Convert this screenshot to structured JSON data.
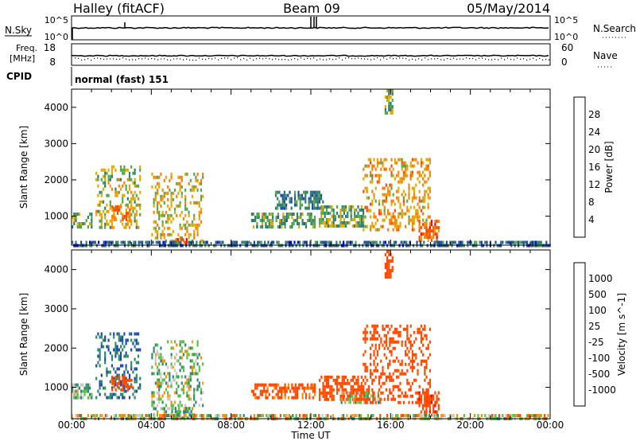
{
  "header": {
    "title": "Halley (fitACF)",
    "beam": "Beam 09",
    "date": "05/May/2014"
  },
  "nsky_panel": {
    "left_label": "N.Sky",
    "right_label": "N.Search",
    "left_ticks": [
      "10^5",
      "10^0"
    ],
    "right_ticks": [
      "10^5",
      "10^0"
    ]
  },
  "freq_panel": {
    "left_label_line1": "Freq.",
    "left_label_line2": "[MHz]",
    "left_ticks": [
      "18",
      "8"
    ],
    "right_label": "Nave",
    "right_ticks": [
      "60",
      "0"
    ]
  },
  "cpid": {
    "label": "CPID",
    "value": "normal (fast) 151"
  },
  "time_axis": {
    "label": "Time UT",
    "ticks": [
      "00:00",
      "04:00",
      "08:00",
      "12:00",
      "16:00",
      "20:00",
      "00:00"
    ],
    "range_hours": [
      0,
      24
    ]
  },
  "colors": {
    "power_scale": [
      "#0000ff",
      "#1e4aa8",
      "#2e7d6e",
      "#57a64b",
      "#e6a800",
      "#ff7f00",
      "#ff4a00",
      "#ff0000"
    ],
    "velocity_scale": [
      "#ff0000",
      "#ff4a00",
      "#ff8c00",
      "#f0a030",
      "#c8c8c8",
      "#57c040",
      "#2e8a6e",
      "#1e4aa8",
      "#1030c0"
    ],
    "ground_scatter": "#b8b8b8"
  },
  "chart_data": [
    {
      "type": "heatmap",
      "name": "power-panel",
      "ylabel": "Slant Range [km]",
      "yticks": [
        "1000",
        "2000",
        "3000",
        "4000"
      ],
      "ylim": [
        200,
        4500
      ],
      "xlim": [
        0,
        24
      ],
      "colorbar_label": "Power [dB]",
      "colorbar_ticks": [
        "4",
        "8",
        "12",
        "16",
        "20",
        "24",
        "28"
      ],
      "colorbar_range": [
        0,
        32
      ],
      "echo_regions": [
        {
          "t0": 0.0,
          "t1": 1.0,
          "r0": 700,
          "r1": 1100,
          "value": 14
        },
        {
          "t0": 1.2,
          "t1": 3.4,
          "r0": 700,
          "r1": 2400,
          "value": 16
        },
        {
          "t0": 2.0,
          "t1": 3.0,
          "r0": 900,
          "r1": 1300,
          "value": 22
        },
        {
          "t0": 4.0,
          "t1": 6.6,
          "r0": 300,
          "r1": 2200,
          "value": 18
        },
        {
          "t0": 5.2,
          "t1": 5.8,
          "r0": 250,
          "r1": 400,
          "value": 28
        },
        {
          "t0": 9.0,
          "t1": 12.2,
          "r0": 700,
          "r1": 1100,
          "value": 12
        },
        {
          "t0": 10.2,
          "t1": 12.6,
          "r0": 1200,
          "r1": 1700,
          "value": 9
        },
        {
          "t0": 12.4,
          "t1": 14.6,
          "r0": 700,
          "r1": 1300,
          "value": 14
        },
        {
          "t0": 14.6,
          "t1": 18.0,
          "r0": 600,
          "r1": 2600,
          "value": 20
        },
        {
          "t0": 15.7,
          "t1": 16.1,
          "r0": 3800,
          "r1": 4500,
          "value": 14
        },
        {
          "t0": 17.4,
          "t1": 18.4,
          "r0": 300,
          "r1": 900,
          "value": 24
        },
        {
          "t0": 0.0,
          "t1": 24.0,
          "r0": 200,
          "r1": 320,
          "value": 8
        }
      ]
    },
    {
      "type": "heatmap",
      "name": "velocity-panel",
      "ylabel": "Slant Range [km]",
      "yticks": [
        "1000",
        "2000",
        "3000",
        "4000"
      ],
      "ylim": [
        200,
        4500
      ],
      "xlim": [
        0,
        24
      ],
      "colorbar_label": "Velocity [m s^-1]",
      "colorbar_ticks": [
        "1000",
        "500",
        "100",
        "25",
        "-25",
        "-100",
        "-500",
        "-1000"
      ],
      "colorbar_range": [
        -1000,
        1000
      ],
      "echo_regions": [
        {
          "t0": 0.0,
          "t1": 1.0,
          "r0": 700,
          "r1": 1100,
          "value": 100
        },
        {
          "t0": 1.2,
          "t1": 3.4,
          "r0": 700,
          "r1": 2400,
          "value": 500
        },
        {
          "t0": 2.0,
          "t1": 3.0,
          "r0": 900,
          "r1": 1300,
          "value": -300
        },
        {
          "t0": 4.0,
          "t1": 6.6,
          "r0": 300,
          "r1": 2200,
          "value": 60
        },
        {
          "t0": 5.0,
          "t1": 6.0,
          "r0": 250,
          "r1": 500,
          "value": 80
        },
        {
          "t0": 9.0,
          "t1": 12.2,
          "r0": 700,
          "r1": 1100,
          "value": -200
        },
        {
          "t0": 12.4,
          "t1": 14.6,
          "r0": 700,
          "r1": 1300,
          "value": -300
        },
        {
          "t0": 13.5,
          "t1": 15.5,
          "r0": 600,
          "r1": 900,
          "value": 0
        },
        {
          "t0": 14.6,
          "t1": 18.0,
          "r0": 600,
          "r1": 2600,
          "value": -300
        },
        {
          "t0": 15.7,
          "t1": 16.1,
          "r0": 3800,
          "r1": 4500,
          "value": -300
        },
        {
          "t0": 17.4,
          "t1": 18.4,
          "r0": 300,
          "r1": 900,
          "value": -400
        },
        {
          "t0": 0.0,
          "t1": 24.0,
          "r0": 200,
          "r1": 320,
          "value": 0
        }
      ]
    }
  ]
}
